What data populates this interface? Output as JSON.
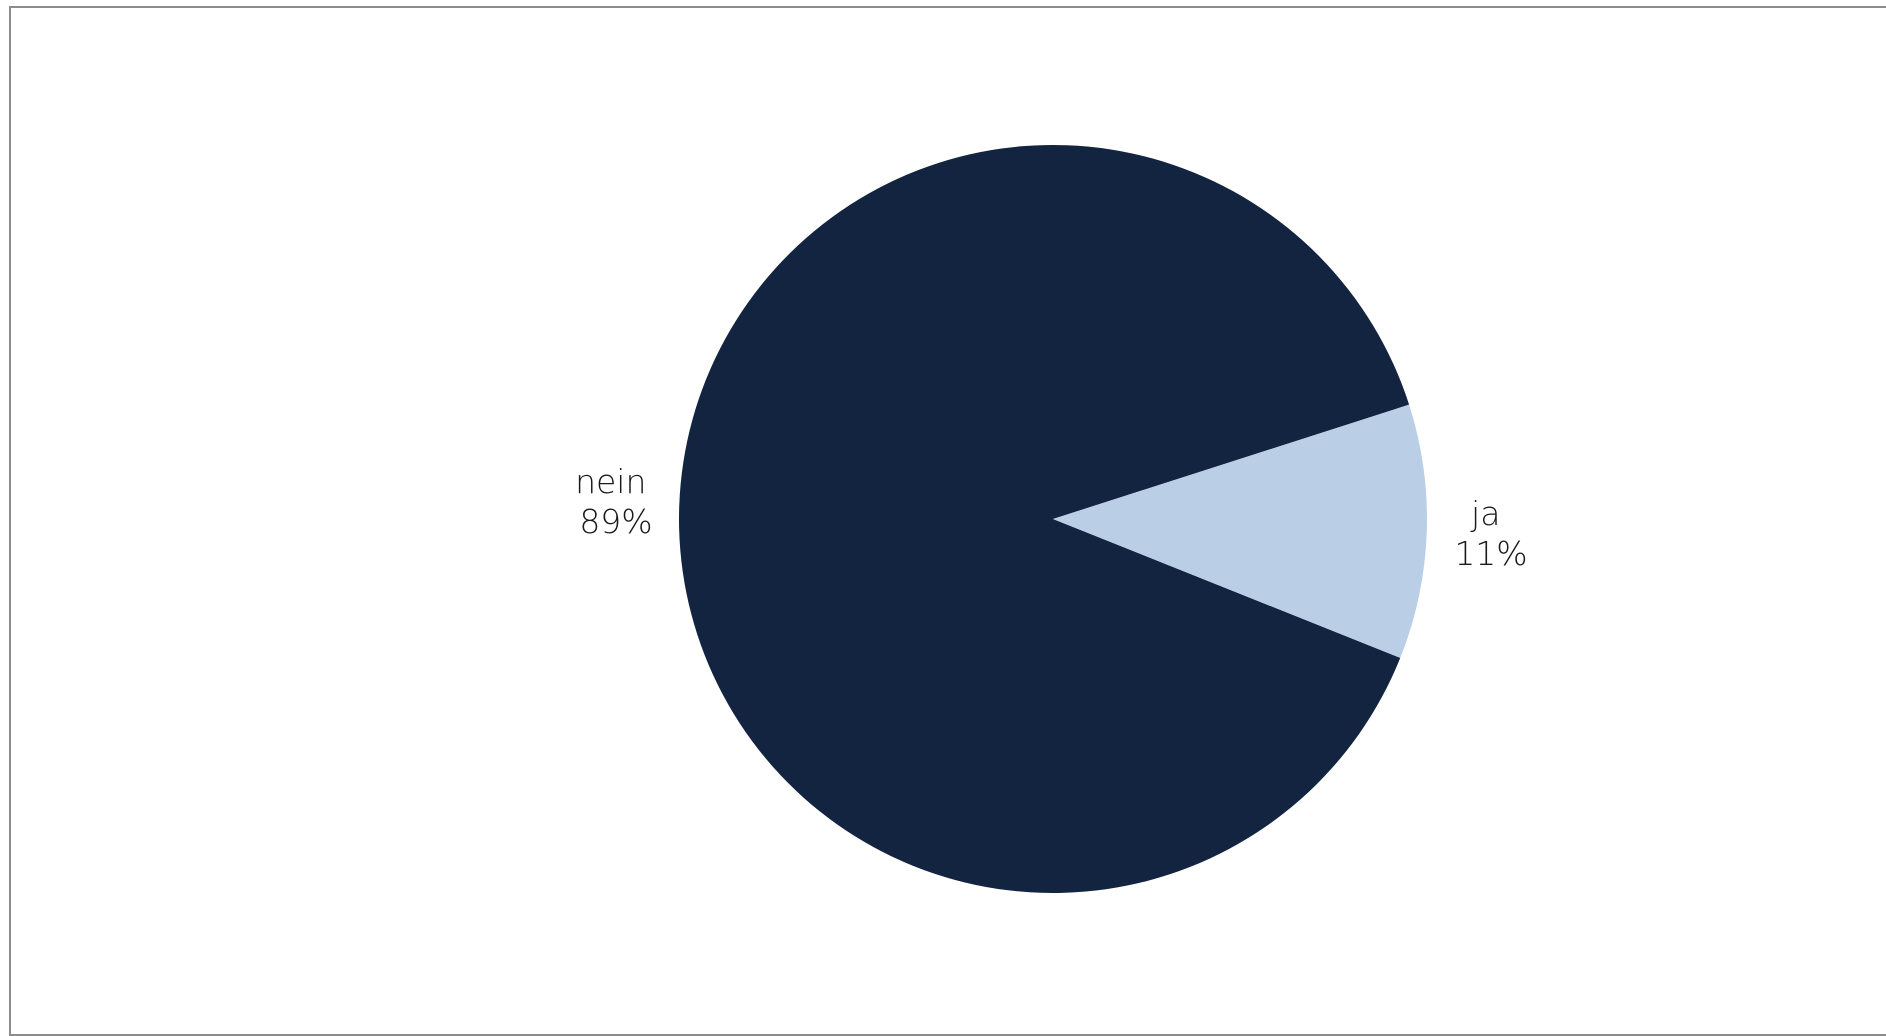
{
  "chart_data": {
    "type": "pie",
    "categories": [
      "nein",
      "ja"
    ],
    "values": [
      89,
      11
    ],
    "value_labels": [
      "89%",
      "11%"
    ],
    "colors": [
      "#12243f",
      "#bacee5"
    ],
    "title": "",
    "legend": "none",
    "labels_outside": true
  }
}
